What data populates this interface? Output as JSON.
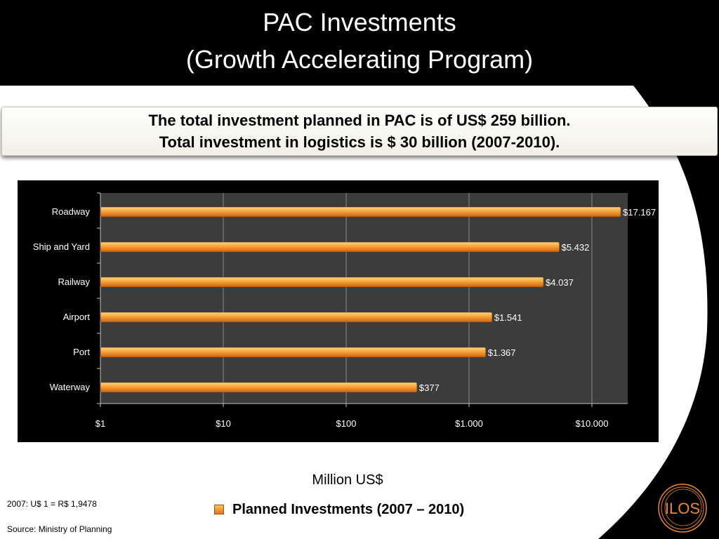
{
  "slide": {
    "title_line1": "PAC Investments",
    "title_line2": "(Growth Accelerating Program)",
    "headline_line1": "The total investment planned in PAC is of US$ 259 billion.",
    "headline_line2": "Total investment in logistics is $ 30 billion (2007-2010).",
    "unit_label": "Million US$",
    "legend_label": "Planned Investments (2007 – 2010)",
    "note_exchange_rate": "2007: U$ 1 = R$ 1,9478",
    "note_source": "Source: Ministry of Planning",
    "logo_text": "ILOS"
  },
  "colors": {
    "header_background": "#000000",
    "bar_fill": "#f0952c",
    "bar_highlight": "#ffd37a",
    "plot_background": "#3c3c3c",
    "logo_color": "#e8892a"
  },
  "chart_data": {
    "type": "bar",
    "orientation": "horizontal",
    "x_scale": "log",
    "categories": [
      "Roadway",
      "Ship and  Yard",
      "Railway",
      "Airport",
      "Port",
      "Waterway"
    ],
    "values": [
      17167,
      5432,
      4037,
      1541,
      1367,
      377
    ],
    "value_labels": [
      "$17.167",
      "$5.432",
      "$4.037",
      "$1.541",
      "$1.367",
      "$377"
    ],
    "xlim": [
      1,
      30000
    ],
    "xticks": [
      1,
      10,
      100,
      1000,
      10000
    ],
    "xtick_labels": [
      "$1",
      "$10",
      "$100",
      "$1.000",
      "$10.000"
    ],
    "grid": true,
    "series": [
      {
        "name": "Planned Investments (2007 – 2010)",
        "values": [
          17167,
          5432,
          4037,
          1541,
          1367,
          377
        ]
      }
    ]
  }
}
